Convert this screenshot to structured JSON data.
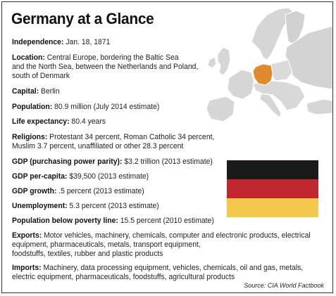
{
  "title": "Germany at a Glance",
  "facts": {
    "independence": {
      "label": "Independence:",
      "value": "Jan. 18, 1871"
    },
    "location": {
      "label": "Location:",
      "line1": "Central Europe, bordering the Baltic Sea",
      "line2": "and the North Sea, between the Netherlands and Poland,",
      "line3": "south of Denmark"
    },
    "capital": {
      "label": "Capital:",
      "value": "Berlin"
    },
    "population": {
      "label": "Population:",
      "value": "80.9 million (July 2014 estimate)"
    },
    "life_expectancy": {
      "label": "Life expectancy:",
      "value": "80.4 years"
    },
    "religions": {
      "label": "Religions:",
      "line1": "Protestant 34 percent, Roman Catholic 34 percent,",
      "line2": "Muslim 3.7 percent, unaffiliated or other 28.3 percent"
    },
    "gdp_ppp": {
      "label": "GDP (purchasing power parity):",
      "value": "$3.2 trillion (2013 estimate)"
    },
    "gdp_per_capita": {
      "label": "GDP per-capita:",
      "value": "$39,500  (2013 estimate)"
    },
    "gdp_growth": {
      "label": "GDP growth:",
      "value": ".5 percent (2013 estimate)"
    },
    "unemployment": {
      "label": "Unemployment:",
      "value": "5.3 percent (2013 estimate)"
    },
    "poverty": {
      "label": "Population below poverty line:",
      "value": "15.5 percent (2010 estimate)"
    },
    "exports": {
      "label": "Exports:",
      "line1": "Motor vehicles, machinery, chemicals, computer and electronic products, electrical",
      "line2": "equipment, pharmaceuticals, metals, transport equipment,",
      "line3": "foodstuffs, textiles, rubber and plastic products"
    },
    "imports": {
      "label": "Imports:",
      "line1": "Machinery, data processing equipment, vehicles, chemicals, oil and gas, metals,",
      "line2": "electric equipment, pharmaceuticals, foodstuffs, agricultural products"
    }
  },
  "source": "Source: CIA World Factbook",
  "colors": {
    "map_land": "#dcdcdc",
    "map_water": "#ffffff",
    "germany_highlight": "#e08a2e",
    "flag_black": "#1a1a1a",
    "flag_red": "#c0262e",
    "flag_gold": "#f2c94c"
  }
}
